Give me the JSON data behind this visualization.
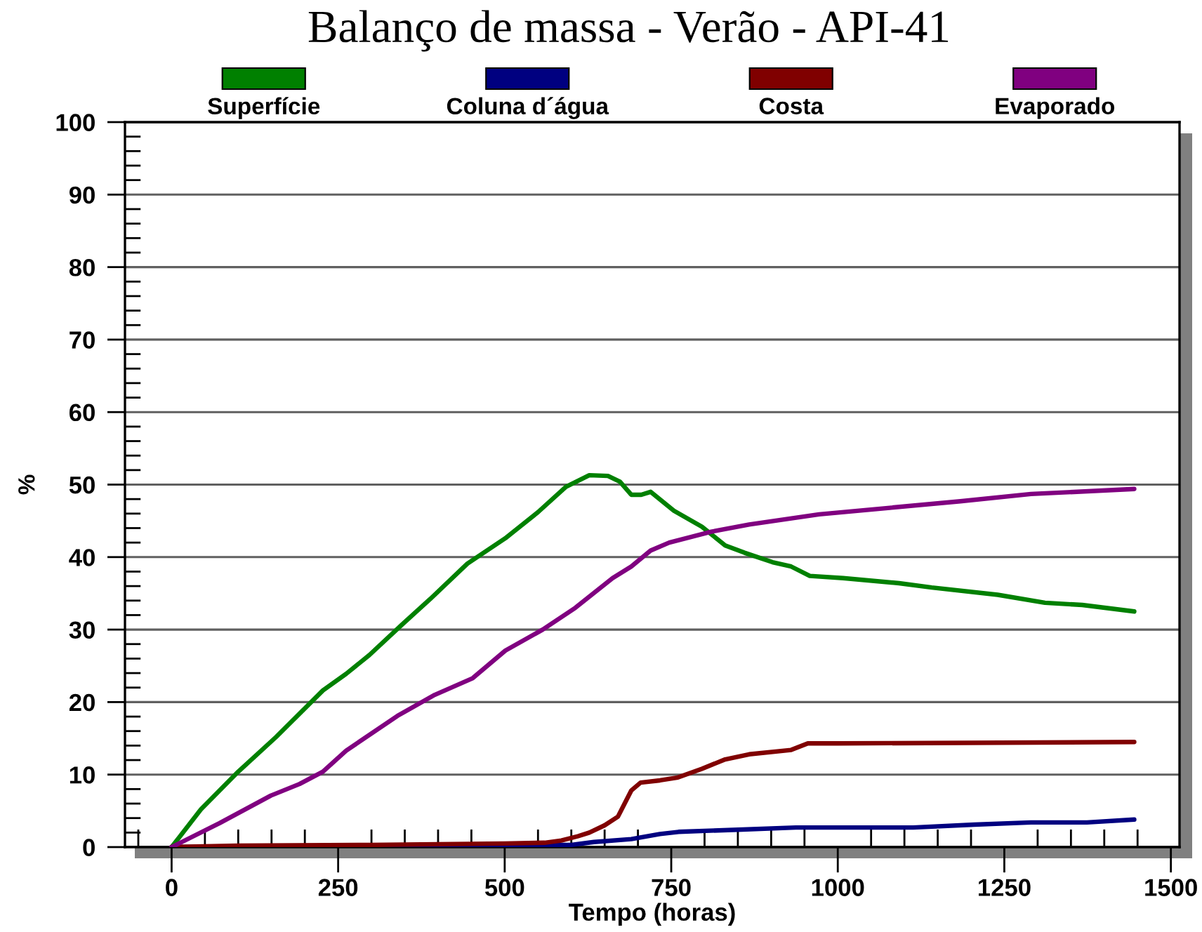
{
  "chart_data": {
    "type": "line",
    "title": "Balanço de massa - Verão - API-41",
    "xlabel": "Tempo (horas)",
    "ylabel": "%",
    "xlim": [
      -70,
      1513
    ],
    "ylim": [
      0,
      100
    ],
    "xticks": [
      {
        "value": -50,
        "label": null
      },
      0,
      {
        "value": 50,
        "label": null
      },
      {
        "value": 100,
        "label": null
      },
      {
        "value": 150,
        "label": null
      },
      {
        "value": 200,
        "label": null
      },
      250,
      {
        "value": 300,
        "label": null
      },
      {
        "value": 350,
        "label": null
      },
      {
        "value": 400,
        "label": null
      },
      {
        "value": 450,
        "label": null
      },
      500,
      {
        "value": 550,
        "label": null
      },
      {
        "value": 600,
        "label": null
      },
      {
        "value": 650,
        "label": null
      },
      {
        "value": 700,
        "label": null
      },
      750,
      {
        "value": 800,
        "label": null
      },
      {
        "value": 850,
        "label": null
      },
      {
        "value": 900,
        "label": null
      },
      {
        "value": 950,
        "label": null
      },
      1000,
      {
        "value": 1050,
        "label": null
      },
      {
        "value": 1100,
        "label": null
      },
      {
        "value": 1150,
        "label": null
      },
      {
        "value": 1200,
        "label": null
      },
      1250,
      {
        "value": 1300,
        "label": null
      },
      {
        "value": 1350,
        "label": null
      },
      {
        "value": 1400,
        "label": null
      },
      {
        "value": 1450,
        "label": null
      },
      1500
    ],
    "yticks": [
      0,
      {
        "value": 2,
        "label": null
      },
      {
        "value": 4,
        "label": null
      },
      {
        "value": 6,
        "label": null
      },
      {
        "value": 8,
        "label": null
      },
      10,
      {
        "value": 12,
        "label": null
      },
      {
        "value": 14,
        "label": null
      },
      {
        "value": 16,
        "label": null
      },
      {
        "value": 18,
        "label": null
      },
      20,
      {
        "value": 22,
        "label": null
      },
      {
        "value": 24,
        "label": null
      },
      {
        "value": 26,
        "label": null
      },
      {
        "value": 28,
        "label": null
      },
      30,
      {
        "value": 32,
        "label": null
      },
      {
        "value": 34,
        "label": null
      },
      {
        "value": 36,
        "label": null
      },
      {
        "value": 38,
        "label": null
      },
      40,
      {
        "value": 42,
        "label": null
      },
      {
        "value": 44,
        "label": null
      },
      {
        "value": 46,
        "label": null
      },
      {
        "value": 48,
        "label": null
      },
      50,
      {
        "value": 52,
        "label": null
      },
      {
        "value": 54,
        "label": null
      },
      {
        "value": 56,
        "label": null
      },
      {
        "value": 58,
        "label": null
      },
      60,
      {
        "value": 62,
        "label": null
      },
      {
        "value": 64,
        "label": null
      },
      {
        "value": 66,
        "label": null
      },
      {
        "value": 68,
        "label": null
      },
      70,
      {
        "value": 72,
        "label": null
      },
      {
        "value": 74,
        "label": null
      },
      {
        "value": 76,
        "label": null
      },
      {
        "value": 78,
        "label": null
      },
      80,
      {
        "value": 82,
        "label": null
      },
      {
        "value": 84,
        "label": null
      },
      {
        "value": 86,
        "label": null
      },
      {
        "value": 88,
        "label": null
      },
      90,
      {
        "value": 92,
        "label": null
      },
      {
        "value": 94,
        "label": null
      },
      {
        "value": 96,
        "label": null
      },
      {
        "value": 98,
        "label": null
      },
      100
    ],
    "grid": "y",
    "legend": "top",
    "series": [
      {
        "name": "Superfície",
        "color": "#008000",
        "x": [
          0,
          44,
          100,
          157,
          227,
          262,
          297,
          346,
          388,
          444,
          501,
          550,
          592,
          627,
          655,
          673,
          690,
          705,
          719,
          754,
          796,
          831,
          860,
          902,
          930,
          958,
          1008,
          1092,
          1141,
          1240,
          1311,
          1367,
          1445
        ],
        "values": [
          0,
          5.2,
          10.4,
          15.2,
          21.6,
          23.9,
          26.5,
          30.7,
          34.2,
          39.1,
          42.6,
          46.2,
          49.7,
          51.3,
          51.2,
          50.4,
          48.6,
          48.6,
          49.0,
          46.4,
          44.2,
          41.6,
          40.6,
          39.3,
          38.7,
          37.4,
          37.1,
          36.4,
          35.8,
          34.8,
          33.7,
          33.4,
          32.5
        ]
      },
      {
        "name": "Coluna d´água",
        "color": "#000080",
        "x": [
          0,
          250,
          600,
          634,
          690,
          733,
          761,
          850,
          937,
          1113,
          1205,
          1290,
          1374,
          1445
        ],
        "values": [
          0,
          0.2,
          0.3,
          0.7,
          1.1,
          1.8,
          2.1,
          2.4,
          2.7,
          2.7,
          3.1,
          3.4,
          3.4,
          3.8
        ]
      },
      {
        "name": "Costa",
        "color": "#800000",
        "x": [
          0,
          100,
          300,
          500,
          560,
          585,
          610,
          627,
          650,
          670,
          680,
          690,
          704,
          733,
          760,
          796,
          831,
          867,
          930,
          955,
          1000,
          1244,
          1445
        ],
        "values": [
          0,
          0.2,
          0.3,
          0.5,
          0.6,
          0.9,
          1.5,
          2.0,
          3.0,
          4.2,
          6.0,
          7.8,
          8.9,
          9.2,
          9.6,
          10.8,
          12.1,
          12.8,
          13.4,
          14.3,
          14.3,
          14.4,
          14.5
        ]
      },
      {
        "name": "Evaporado",
        "color": "#800080",
        "x": [
          0,
          72,
          149,
          192,
          227,
          262,
          339,
          395,
          452,
          501,
          557,
          606,
          662,
          690,
          719,
          747,
          810,
          867,
          972,
          1078,
          1184,
          1290,
          1445
        ],
        "values": [
          0,
          3.3,
          7.1,
          8.7,
          10.4,
          13.3,
          18.1,
          21.0,
          23.3,
          27.1,
          30.0,
          33.0,
          37.1,
          38.7,
          40.9,
          42.0,
          43.5,
          44.5,
          45.9,
          46.8,
          47.7,
          48.7,
          49.4
        ]
      }
    ]
  }
}
